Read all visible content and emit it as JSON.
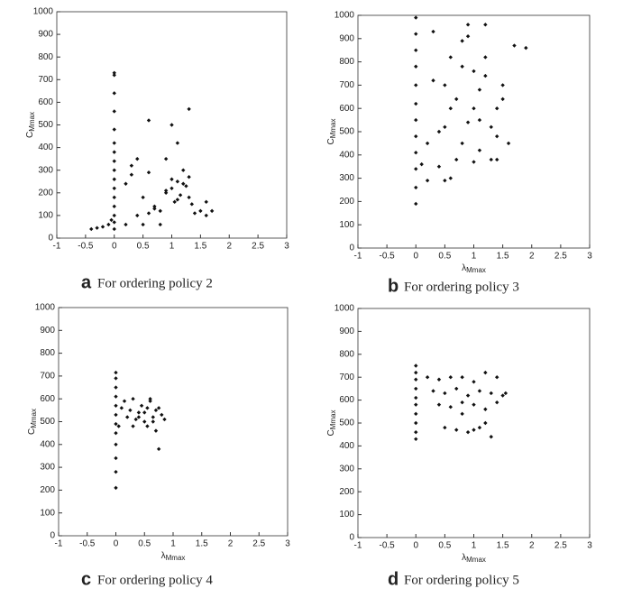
{
  "chart_data": [
    {
      "type": "scatter",
      "panel_label": "a",
      "caption": "For ordering policy 2",
      "ylabel": "C",
      "ylabel_sub": "Mmax",
      "color": "#111111",
      "xlim": [
        -1,
        3
      ],
      "xticks": [
        -1,
        -0.5,
        0,
        0.5,
        1,
        1.5,
        2,
        2.5,
        3
      ],
      "ylim": [
        0,
        1000
      ],
      "yticks": [
        0,
        100,
        200,
        300,
        400,
        500,
        600,
        700,
        800,
        900,
        1000
      ],
      "x": [
        0,
        0,
        0,
        0,
        0,
        0,
        0,
        0,
        0,
        0,
        0,
        0,
        0,
        0,
        0,
        0,
        -0.05,
        -0.1,
        -0.2,
        -0.3,
        -0.4,
        0.2,
        0.3,
        0.4,
        0.5,
        0.6,
        0.7,
        0.8,
        0.9,
        1.0,
        1.05,
        1.1,
        1.15,
        1.2,
        1.25,
        1.3,
        1.35,
        1.4,
        1.5,
        1.6,
        1.7,
        0.6,
        0.8,
        1.0,
        1.2,
        0.3,
        0.5,
        0.7,
        0.9,
        1.1,
        1.3,
        1.6,
        0.2,
        0.4,
        0.6,
        1.0,
        1.1,
        0.9,
        1.3
      ],
      "y": [
        730,
        720,
        640,
        560,
        480,
        420,
        380,
        340,
        300,
        260,
        220,
        180,
        140,
        100,
        70,
        40,
        80,
        60,
        50,
        45,
        40,
        60,
        320,
        350,
        60,
        110,
        130,
        120,
        200,
        220,
        160,
        250,
        190,
        300,
        230,
        180,
        150,
        110,
        120,
        100,
        120,
        520,
        60,
        500,
        240,
        280,
        180,
        140,
        210,
        420,
        570,
        160,
        240,
        100,
        290,
        260,
        170,
        350,
        270
      ]
    },
    {
      "type": "scatter",
      "panel_label": "b",
      "caption": "For ordering policy 3",
      "xlabel": "λ",
      "xlabel_sub": "Mmax",
      "ylabel": "C",
      "ylabel_sub": "Mmax",
      "color": "#111111",
      "xlim": [
        -1,
        3
      ],
      "xticks": [
        -1,
        -0.5,
        0,
        0.5,
        1,
        1.5,
        2,
        2.5,
        3
      ],
      "ylim": [
        0,
        1000
      ],
      "yticks": [
        0,
        100,
        200,
        300,
        400,
        500,
        600,
        700,
        800,
        900,
        1000
      ],
      "x": [
        0,
        0,
        0,
        0,
        0,
        0,
        0,
        0,
        0,
        0,
        0,
        0,
        0.1,
        0.2,
        0.3,
        0.4,
        0.5,
        0.6,
        0.7,
        0.8,
        0.9,
        1.0,
        1.1,
        1.2,
        1.3,
        1.4,
        1.5,
        1.6,
        1.7,
        1.9,
        0.3,
        0.5,
        0.7,
        0.9,
        1.1,
        1.3,
        1.5,
        0.4,
        0.6,
        0.8,
        1.0,
        1.2,
        1.4,
        0.2,
        0.6,
        1.0,
        1.4,
        0.9,
        1.1,
        0.5,
        0.8,
        1.2
      ],
      "y": [
        990,
        920,
        850,
        780,
        700,
        620,
        550,
        480,
        410,
        340,
        260,
        190,
        360,
        290,
        720,
        350,
        290,
        820,
        380,
        780,
        960,
        600,
        550,
        960,
        520,
        380,
        640,
        450,
        870,
        860,
        930,
        700,
        640,
        540,
        420,
        380,
        700,
        500,
        600,
        890,
        760,
        820,
        600,
        450,
        300,
        370,
        480,
        910,
        680,
        520,
        450,
        740
      ]
    },
    {
      "type": "scatter",
      "panel_label": "c",
      "caption": "For ordering policy 4",
      "xlabel": "λ",
      "xlabel_sub": "Mmax",
      "ylabel": "C",
      "ylabel_sub": "Mmax",
      "color": "#111111",
      "xlim": [
        -1,
        3
      ],
      "xticks": [
        -1,
        -0.5,
        0,
        0.5,
        1,
        1.5,
        2,
        2.5,
        3
      ],
      "ylim": [
        0,
        1000
      ],
      "yticks": [
        0,
        100,
        200,
        300,
        400,
        500,
        600,
        700,
        800,
        900,
        1000
      ],
      "x": [
        0,
        0,
        0,
        0,
        0,
        0,
        0,
        0,
        0,
        0,
        0,
        0,
        0.05,
        0.1,
        0.15,
        0.2,
        0.25,
        0.3,
        0.35,
        0.4,
        0.45,
        0.5,
        0.55,
        0.6,
        0.65,
        0.7,
        0.75,
        0.8,
        0.85,
        0.3,
        0.5,
        0.6,
        0.7,
        0.75,
        0.65,
        0.55,
        0.4
      ],
      "y": [
        715,
        690,
        650,
        610,
        570,
        530,
        490,
        450,
        400,
        340,
        280,
        210,
        480,
        560,
        590,
        520,
        550,
        600,
        510,
        540,
        570,
        500,
        560,
        590,
        520,
        550,
        380,
        530,
        510,
        480,
        540,
        600,
        460,
        560,
        500,
        480,
        520
      ]
    },
    {
      "type": "scatter",
      "panel_label": "d",
      "caption": "For ordering policy 5",
      "xlabel": "λ",
      "xlabel_sub": "Mmax",
      "ylabel": "C",
      "ylabel_sub": "Mmax",
      "color": "#111111",
      "xlim": [
        -1,
        3
      ],
      "xticks": [
        -1,
        -0.5,
        0,
        0.5,
        1,
        1.5,
        2,
        2.5,
        3
      ],
      "ylim": [
        0,
        1000
      ],
      "yticks": [
        0,
        100,
        200,
        300,
        400,
        500,
        600,
        700,
        800,
        900,
        1000
      ],
      "x": [
        0,
        0,
        0,
        0,
        0,
        0,
        0,
        0,
        0,
        0,
        0.2,
        0.4,
        0.6,
        0.8,
        1.0,
        1.2,
        1.4,
        0.3,
        0.5,
        0.7,
        0.9,
        1.1,
        1.3,
        1.5,
        0.4,
        0.6,
        0.8,
        1.0,
        1.2,
        1.4,
        0.5,
        0.7,
        0.9,
        1.1,
        1.3,
        1.55,
        0.8,
        1.0,
        1.2
      ],
      "y": [
        750,
        720,
        690,
        650,
        610,
        580,
        540,
        500,
        460,
        430,
        700,
        690,
        700,
        700,
        680,
        720,
        700,
        640,
        630,
        650,
        620,
        640,
        630,
        620,
        580,
        570,
        590,
        580,
        560,
        590,
        480,
        470,
        460,
        480,
        440,
        630,
        540,
        470,
        500
      ]
    }
  ]
}
